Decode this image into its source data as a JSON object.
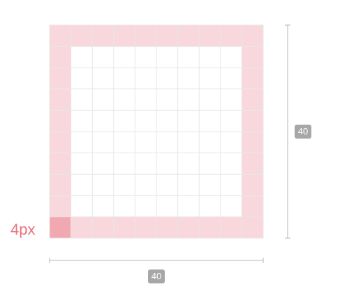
{
  "grid": {
    "cells": 10,
    "border_cells": 1
  },
  "corner_label": "4px",
  "dimensions": {
    "width_label": "40",
    "height_label": "40"
  },
  "colors": {
    "border_fill": "#f8d8dd",
    "corner_highlight": "#f2a8b0",
    "grid_line": "#e7e7e7",
    "inner_fill": "#ffffff",
    "label_text": "#e8757f",
    "dimension_line": "#b5b5b5",
    "badge_fill": "#a7a7a7"
  }
}
